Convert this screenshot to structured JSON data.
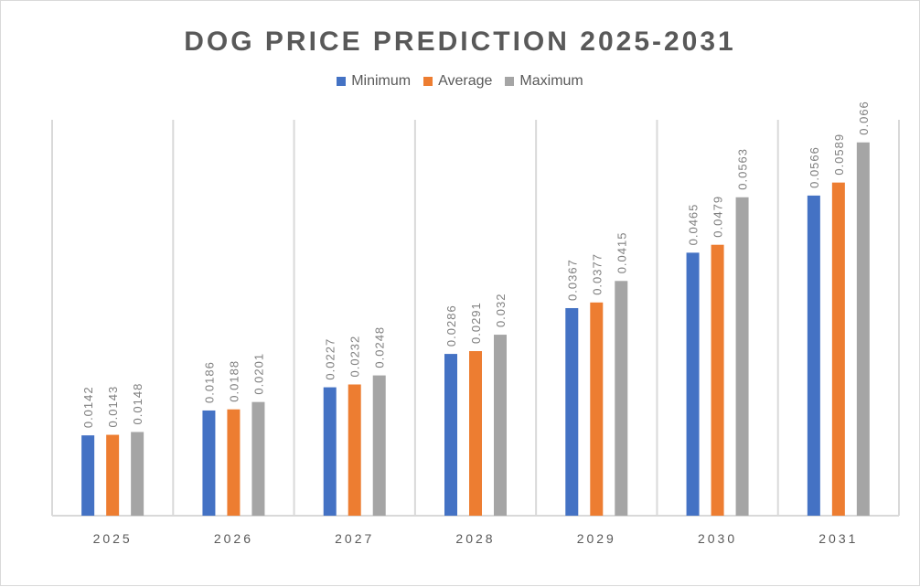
{
  "chart_data": {
    "type": "bar",
    "title": "DOG PRICE PREDICTION 2025-2031",
    "categories": [
      "2025",
      "2026",
      "2027",
      "2028",
      "2029",
      "2030",
      "2031"
    ],
    "series": [
      {
        "name": "Minimum",
        "color": "#4472c4",
        "values": [
          0.0142,
          0.0186,
          0.0227,
          0.0286,
          0.0367,
          0.0465,
          0.0566
        ]
      },
      {
        "name": "Average",
        "color": "#ed7d31",
        "values": [
          0.0143,
          0.0188,
          0.0232,
          0.0291,
          0.0377,
          0.0479,
          0.0589
        ]
      },
      {
        "name": "Maximum",
        "color": "#a5a5a5",
        "values": [
          0.0148,
          0.0201,
          0.0248,
          0.032,
          0.0415,
          0.0563,
          0.066
        ]
      }
    ],
    "ylim": [
      0,
      0.07
    ],
    "grid": "vertical category separators",
    "legend": "top",
    "data_labels": "rotated, above bars"
  }
}
